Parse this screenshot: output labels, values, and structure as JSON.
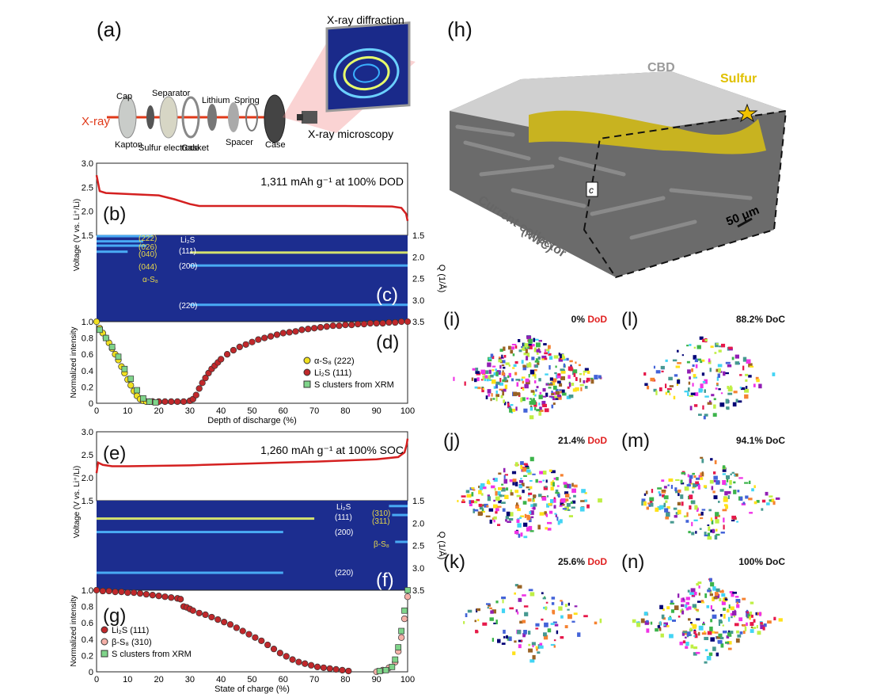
{
  "figure": {
    "panel_labels": [
      "(a)",
      "(b)",
      "(c)",
      "(d)",
      "(e)",
      "(f)",
      "(g)",
      "(h)",
      "(i)",
      "(j)",
      "(k)",
      "(l)",
      "(m)",
      "(n)"
    ]
  },
  "setup": {
    "xray_label": "X-ray",
    "components": [
      "Cap",
      "Kapton",
      "Separator",
      "Sulfur electrode",
      "Lithium",
      "Gasket",
      "Spring",
      "Spacer",
      "Case"
    ],
    "xrd_label": "X-ray diffraction",
    "xrm_label": "X-ray microscopy"
  },
  "tomography": {
    "cbd_label": "CBD",
    "sulfur_label": "Sulfur",
    "collector_label": "Current collector",
    "collector_sub": "(NWC)",
    "c_tag": "c",
    "scale_label": "50 μm"
  },
  "snapshots": [
    {
      "panel": "(i)",
      "value": "0%",
      "state": "DoD"
    },
    {
      "panel": "(j)",
      "value": "21.4%",
      "state": "DoD"
    },
    {
      "panel": "(k)",
      "value": "25.6%",
      "state": "DoD"
    },
    {
      "panel": "(l)",
      "value": "88.2% DoC",
      "state": ""
    },
    {
      "panel": "(m)",
      "value": "94.1% DoC",
      "state": ""
    },
    {
      "panel": "(n)",
      "value": "100% DoC",
      "state": ""
    }
  ],
  "chart_data": [
    {
      "panel": "(b)",
      "type": "line",
      "annotation": "1,311 mAh g⁻¹ at 100% DOD",
      "ylabel": "Voltage (V vs. Li⁺/Li)",
      "ylim": [
        1.5,
        3.0
      ],
      "yticks": [
        "1.5",
        "2.0",
        "2.5",
        "3.0"
      ],
      "x": [
        0,
        1,
        3,
        10,
        20,
        25,
        30,
        33,
        40,
        60,
        80,
        95,
        98,
        99.5,
        100
      ],
      "y": [
        2.75,
        2.42,
        2.38,
        2.36,
        2.33,
        2.25,
        2.15,
        2.11,
        2.11,
        2.11,
        2.11,
        2.1,
        2.07,
        1.95,
        1.8
      ]
    },
    {
      "panel": "(c)",
      "type": "heatmap",
      "ylabel": "Q (1/Å)",
      "ylim": [
        1.5,
        3.5
      ],
      "yticks": [
        "1.5",
        "2.0",
        "2.5",
        "3.0",
        "3.5"
      ],
      "peak_labels": [
        "(222)",
        "(026)",
        "(040)",
        "(044)",
        "α-S₈",
        "Li₂S",
        "(111)",
        "(200)",
        "(220)"
      ],
      "bands": [
        {
          "q": 1.52,
          "from": 0,
          "to": 18,
          "strength": 0.6
        },
        {
          "q": 1.64,
          "from": 0,
          "to": 15,
          "strength": 0.5
        },
        {
          "q": 1.74,
          "from": 0,
          "to": 16,
          "strength": 0.5
        },
        {
          "q": 1.88,
          "from": 0,
          "to": 10,
          "strength": 0.5
        },
        {
          "q": 1.9,
          "from": 30,
          "to": 100,
          "strength": 1.0
        },
        {
          "q": 2.2,
          "from": 30,
          "to": 100,
          "strength": 0.6
        },
        {
          "q": 3.11,
          "from": 30,
          "to": 100,
          "strength": 0.65
        }
      ]
    },
    {
      "panel": "(d)",
      "type": "scatter",
      "xlabel": "Depth of discharge (%)",
      "ylabel": "Normalized intensity",
      "xlim": [
        0,
        100
      ],
      "ylim": [
        0,
        1.0
      ],
      "xticks": [
        "0",
        "10",
        "20",
        "30",
        "40",
        "50",
        "60",
        "70",
        "80",
        "90",
        "100"
      ],
      "yticks": [
        "0",
        "0.2",
        "0.4",
        "0.6",
        "0.8",
        "1.0"
      ],
      "series": [
        {
          "name": "α-S₈ (222)",
          "marker": "circle",
          "color": "#f0e020",
          "x": [
            0,
            1,
            2,
            3,
            4,
            5,
            6,
            7,
            8,
            9,
            10,
            11,
            12,
            13,
            14,
            15,
            16,
            17,
            18
          ],
          "y": [
            1.0,
            0.92,
            0.86,
            0.8,
            0.74,
            0.67,
            0.6,
            0.53,
            0.45,
            0.37,
            0.29,
            0.22,
            0.15,
            0.09,
            0.05,
            0.03,
            0.02,
            0.02,
            0.02
          ]
        },
        {
          "name": "Li₂S (111)",
          "marker": "circle",
          "color": "#c0282b",
          "x": [
            18,
            20,
            22,
            24,
            26,
            28,
            30,
            31,
            32,
            33,
            34,
            35,
            36,
            37,
            38,
            39,
            40,
            42,
            44,
            46,
            48,
            50,
            52,
            54,
            56,
            58,
            60,
            62,
            64,
            66,
            68,
            70,
            72,
            74,
            76,
            78,
            80,
            82,
            84,
            86,
            88,
            90,
            92,
            94,
            96,
            98,
            100
          ],
          "y": [
            0.02,
            0.02,
            0.02,
            0.02,
            0.02,
            0.02,
            0.03,
            0.05,
            0.1,
            0.18,
            0.25,
            0.31,
            0.37,
            0.42,
            0.46,
            0.5,
            0.54,
            0.6,
            0.65,
            0.69,
            0.72,
            0.75,
            0.78,
            0.8,
            0.82,
            0.84,
            0.86,
            0.87,
            0.88,
            0.9,
            0.91,
            0.92,
            0.93,
            0.94,
            0.95,
            0.95,
            0.96,
            0.96,
            0.97,
            0.97,
            0.98,
            0.98,
            0.98,
            0.99,
            0.99,
            1.0,
            1.0
          ]
        },
        {
          "name": "S clusters from XRM",
          "marker": "square",
          "color": "#7fd48a",
          "x": [
            1,
            3,
            5,
            7,
            9,
            11,
            13,
            15,
            17,
            19
          ],
          "y": [
            0.9,
            0.8,
            0.69,
            0.57,
            0.42,
            0.3,
            0.16,
            0.06,
            0.02,
            0.01
          ]
        }
      ]
    },
    {
      "panel": "(e)",
      "type": "line",
      "annotation": "1,260 mAh g⁻¹ at 100% SOC",
      "ylabel": "Voltage (V vs. Li⁺/Li)",
      "ylim": [
        1.5,
        3.0
      ],
      "yticks": [
        "1.5",
        "2.0",
        "2.5",
        "3.0"
      ],
      "x": [
        0,
        0.5,
        2,
        5,
        10,
        30,
        50,
        70,
        90,
        97,
        99,
        99.7,
        100
      ],
      "y": [
        2.1,
        2.33,
        2.28,
        2.25,
        2.25,
        2.27,
        2.31,
        2.35,
        2.4,
        2.45,
        2.55,
        2.72,
        2.85
      ]
    },
    {
      "panel": "(f)",
      "type": "heatmap",
      "ylabel": "Q (1/Å)",
      "ylim": [
        1.5,
        3.5
      ],
      "yticks": [
        "1.5",
        "2.0",
        "2.5",
        "3.0",
        "3.5"
      ],
      "peak_labels": [
        "Li₂S",
        "(111)",
        "(200)",
        "(220)",
        "(310)",
        "(311)",
        "β-S₈"
      ],
      "bands": [
        {
          "q": 1.9,
          "from": 0,
          "to": 70,
          "strength": 1.0
        },
        {
          "q": 2.2,
          "from": 0,
          "to": 60,
          "strength": 0.55
        },
        {
          "q": 3.11,
          "from": 0,
          "to": 60,
          "strength": 0.6
        },
        {
          "q": 1.62,
          "from": 94,
          "to": 100,
          "strength": 0.6
        },
        {
          "q": 1.82,
          "from": 95,
          "to": 100,
          "strength": 0.5
        },
        {
          "q": 2.42,
          "from": 96,
          "to": 100,
          "strength": 0.4
        }
      ]
    },
    {
      "panel": "(g)",
      "type": "scatter",
      "xlabel": "State of charge (%)",
      "ylabel": "Normalized intensity",
      "xlim": [
        0,
        100
      ],
      "ylim": [
        0,
        1.0
      ],
      "xticks": [
        "0",
        "10",
        "20",
        "30",
        "40",
        "50",
        "60",
        "70",
        "80",
        "90",
        "100"
      ],
      "yticks": [
        "0",
        "0.2",
        "0.4",
        "0.6",
        "0.8",
        "1.0"
      ],
      "series": [
        {
          "name": "Li₂S (111)",
          "marker": "circle",
          "color": "#c0282b",
          "x": [
            0,
            2,
            4,
            6,
            8,
            10,
            12,
            14,
            16,
            18,
            20,
            22,
            24,
            26,
            27,
            28,
            29,
            30,
            31,
            33,
            35,
            37,
            39,
            41,
            43,
            45,
            47,
            49,
            51,
            53,
            55,
            57,
            59,
            61,
            63,
            65,
            67,
            69,
            71,
            73,
            75,
            77,
            79,
            81
          ],
          "y": [
            1.0,
            0.99,
            0.99,
            0.98,
            0.98,
            0.97,
            0.97,
            0.96,
            0.95,
            0.94,
            0.93,
            0.92,
            0.91,
            0.9,
            0.89,
            0.8,
            0.79,
            0.77,
            0.75,
            0.72,
            0.7,
            0.67,
            0.64,
            0.61,
            0.58,
            0.54,
            0.5,
            0.46,
            0.42,
            0.38,
            0.33,
            0.28,
            0.23,
            0.19,
            0.15,
            0.12,
            0.1,
            0.08,
            0.06,
            0.05,
            0.04,
            0.03,
            0.02,
            0.01
          ]
        },
        {
          "name": "β-S₈ (310)",
          "marker": "circle",
          "color": "#f4b0a8",
          "x": [
            90,
            92,
            94,
            96,
            97,
            98,
            99,
            100
          ],
          "y": [
            0.0,
            0.02,
            0.05,
            0.12,
            0.25,
            0.42,
            0.65,
            0.92
          ]
        },
        {
          "name": "S clusters from XRM",
          "marker": "square",
          "color": "#7fd48a",
          "x": [
            91,
            93,
            95,
            96,
            97,
            98,
            99,
            100
          ],
          "y": [
            0.01,
            0.02,
            0.06,
            0.15,
            0.3,
            0.5,
            0.75,
            1.0
          ]
        }
      ]
    }
  ]
}
